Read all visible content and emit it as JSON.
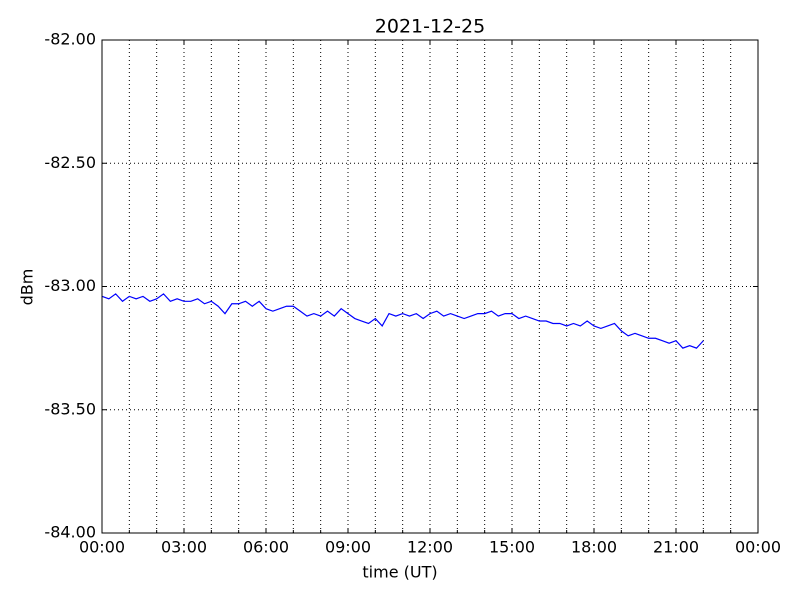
{
  "chart_data": {
    "type": "line",
    "title": "2021-12-25",
    "x_label": "time (UT)",
    "y_label": "dBm",
    "x": [
      0,
      0.25,
      0.5,
      0.75,
      1,
      1.25,
      1.5,
      1.75,
      2,
      2.25,
      2.5,
      2.75,
      3,
      3.25,
      3.5,
      3.75,
      4,
      4.25,
      4.5,
      4.75,
      5,
      5.25,
      5.5,
      5.75,
      6,
      6.25,
      6.5,
      6.75,
      7,
      7.25,
      7.5,
      7.75,
      8,
      8.25,
      8.5,
      8.75,
      9,
      9.25,
      9.5,
      9.75,
      10,
      10.25,
      10.5,
      10.75,
      11,
      11.25,
      11.5,
      11.75,
      12,
      12.25,
      12.5,
      12.75,
      13,
      13.25,
      13.5,
      13.75,
      14,
      14.25,
      14.5,
      14.75,
      15,
      15.25,
      15.5,
      15.75,
      16,
      16.25,
      16.5,
      16.75,
      17,
      17.25,
      17.5,
      17.75,
      18,
      18.25,
      18.5,
      18.75,
      19,
      19.25,
      19.5,
      19.75,
      20,
      20.25,
      20.5,
      20.75,
      21,
      21.25,
      21.5,
      21.75,
      22
    ],
    "series": [
      {
        "color": "#0000ff",
        "values": [
          -83.04,
          -83.05,
          -83.03,
          -83.06,
          -83.04,
          -83.05,
          -83.04,
          -83.06,
          -83.05,
          -83.03,
          -83.06,
          -83.05,
          -83.06,
          -83.06,
          -83.05,
          -83.07,
          -83.06,
          -83.08,
          -83.11,
          -83.07,
          -83.07,
          -83.06,
          -83.08,
          -83.06,
          -83.09,
          -83.1,
          -83.09,
          -83.08,
          -83.08,
          -83.1,
          -83.12,
          -83.11,
          -83.12,
          -83.1,
          -83.12,
          -83.09,
          -83.11,
          -83.13,
          -83.14,
          -83.15,
          -83.13,
          -83.16,
          -83.11,
          -83.12,
          -83.11,
          -83.12,
          -83.11,
          -83.13,
          -83.11,
          -83.1,
          -83.12,
          -83.11,
          -83.12,
          -83.13,
          -83.12,
          -83.11,
          -83.11,
          -83.1,
          -83.12,
          -83.11,
          -83.11,
          -83.13,
          -83.12,
          -83.13,
          -83.14,
          -83.14,
          -83.15,
          -83.15,
          -83.16,
          -83.15,
          -83.16,
          -83.14,
          -83.16,
          -83.17,
          -83.16,
          -83.15,
          -83.18,
          -83.2,
          -83.19,
          -83.2,
          -83.21,
          -83.21,
          -83.22,
          -83.23,
          -83.22,
          -83.25,
          -83.24,
          -83.25,
          -83.22
        ]
      }
    ],
    "xlim": [
      0,
      24
    ],
    "xticks": [
      {
        "value": 0,
        "label": "00:00"
      },
      {
        "value": 3,
        "label": "03:00"
      },
      {
        "value": 6,
        "label": "06:00"
      },
      {
        "value": 9,
        "label": "09:00"
      },
      {
        "value": 12,
        "label": "12:00"
      },
      {
        "value": 15,
        "label": "15:00"
      },
      {
        "value": 18,
        "label": "18:00"
      },
      {
        "value": 21,
        "label": "21:00"
      },
      {
        "value": 24,
        "label": "00:00"
      }
    ],
    "x_minor_ticks": [
      1,
      2,
      4,
      5,
      7,
      8,
      10,
      11,
      13,
      14,
      16,
      17,
      19,
      20,
      22,
      23
    ],
    "ylim": [
      -84,
      -82
    ],
    "yticks": [
      {
        "value": -84,
        "label": "-84.00"
      },
      {
        "value": -83.5,
        "label": "-83.50"
      },
      {
        "value": -83,
        "label": "-83.00"
      },
      {
        "value": -82.5,
        "label": "-82.50"
      },
      {
        "value": -82,
        "label": "-82.00"
      }
    ],
    "grid": true
  }
}
